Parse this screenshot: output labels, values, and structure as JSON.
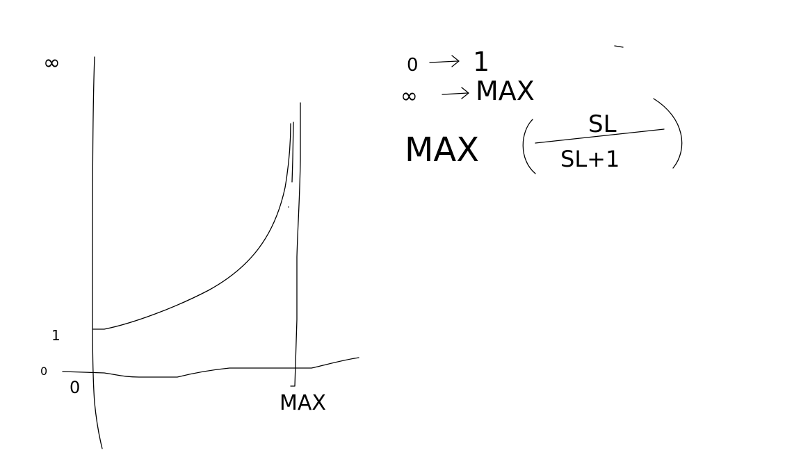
{
  "graph": {
    "y_top_label": "∞",
    "y_one_label": "1",
    "y_zero_label": "0",
    "x_origin_label": "0",
    "x_max_label": "MAX"
  },
  "notes": {
    "line1_left": "0",
    "line1_right": "1",
    "line2_left": "∞",
    "line2_right": "MAX",
    "formula_prefix": "MAX",
    "formula_numerator": "SL",
    "formula_denominator": "SL+1"
  }
}
